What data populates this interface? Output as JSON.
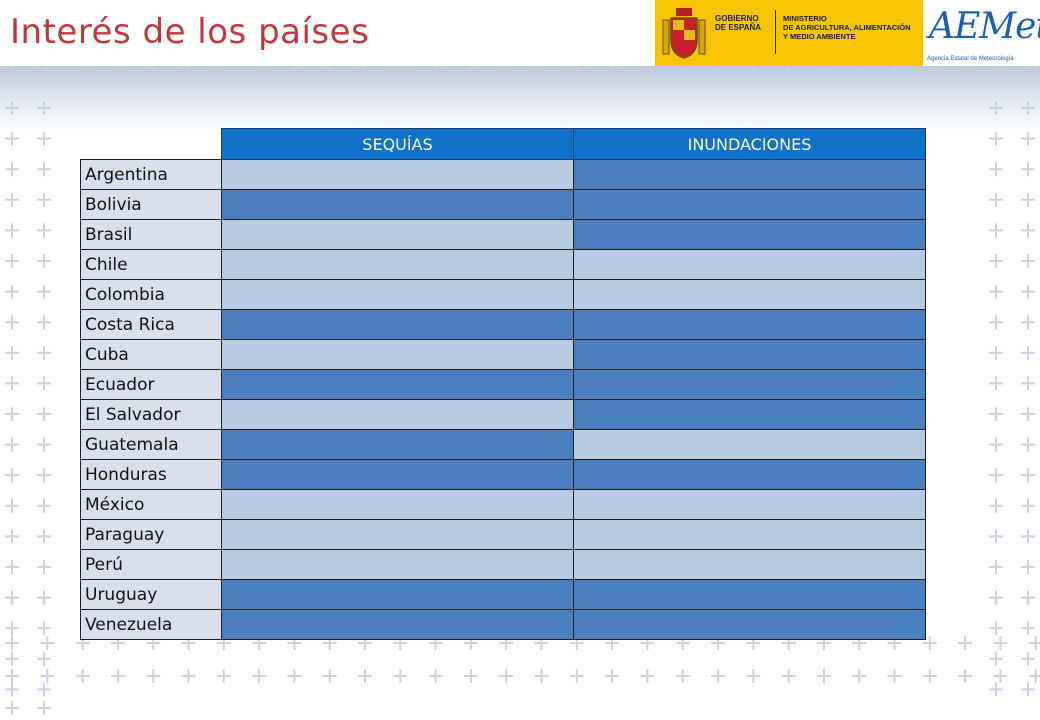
{
  "title": "Interés de los países",
  "logos": {
    "gov_line1": "GOBIERNO\nDE ESPAÑA",
    "gov_line2": "MINISTERIO\nDE AGRICULTURA, ALIMENTACIÓN\nY MEDIO AMBIENTE",
    "aemet_name": "AEMet",
    "aemet_sub": "Agencia Estatal de Meteorología"
  },
  "table": {
    "headers": [
      "SEQUÍAS",
      "INUNDACIONES"
    ],
    "colors": {
      "dark": "#4a7fbd",
      "light": "#b7cbe3",
      "header": "#0f72c8"
    },
    "rows": [
      {
        "country": "Argentina",
        "sequias": "light",
        "inundaciones": "dark"
      },
      {
        "country": "Bolivia",
        "sequias": "dark",
        "inundaciones": "dark"
      },
      {
        "country": "Brasil",
        "sequias": "light",
        "inundaciones": "dark"
      },
      {
        "country": "Chile",
        "sequias": "light",
        "inundaciones": "light"
      },
      {
        "country": "Colombia",
        "sequias": "light",
        "inundaciones": "light"
      },
      {
        "country": "Costa Rica",
        "sequias": "dark",
        "inundaciones": "dark"
      },
      {
        "country": "Cuba",
        "sequias": "light",
        "inundaciones": "dark"
      },
      {
        "country": "Ecuador",
        "sequias": "dark",
        "inundaciones": "dark"
      },
      {
        "country": "El Salvador",
        "sequias": "light",
        "inundaciones": "dark"
      },
      {
        "country": "Guatemala",
        "sequias": "dark",
        "inundaciones": "light"
      },
      {
        "country": "Honduras",
        "sequias": "dark",
        "inundaciones": "dark"
      },
      {
        "country": "México",
        "sequias": "light",
        "inundaciones": "light"
      },
      {
        "country": "Paraguay",
        "sequias": "light",
        "inundaciones": "light"
      },
      {
        "country": "Perú",
        "sequias": "light",
        "inundaciones": "light"
      },
      {
        "country": "Uruguay",
        "sequias": "dark",
        "inundaciones": "dark"
      },
      {
        "country": "Venezuela",
        "sequias": "dark",
        "inundaciones": "dark"
      }
    ]
  }
}
